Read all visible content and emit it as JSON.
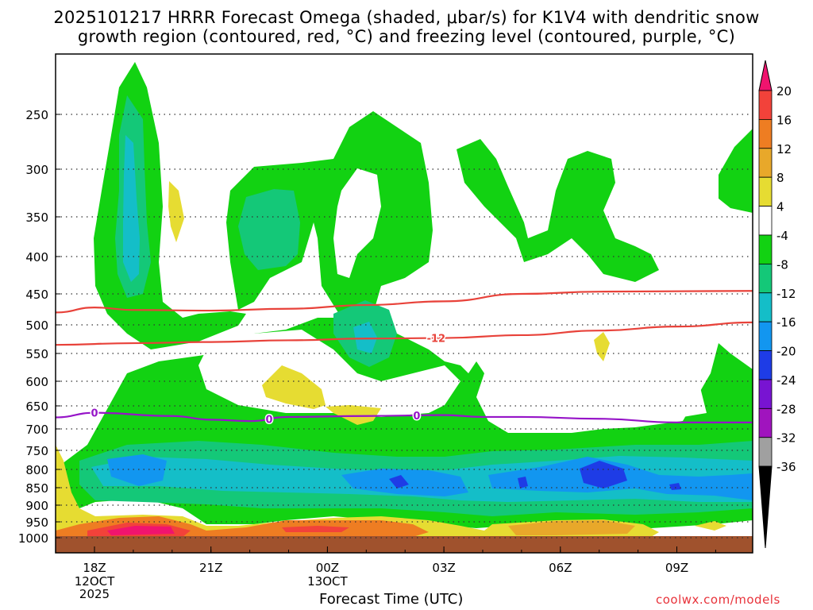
{
  "title_line1": "2025101217 HRRR Forecast Omega (shaded, μbar/s) for K1V4 with dendritic snow",
  "title_line2": "growth region (contoured, red, °C) and freezing level (contoured, purple, °C)",
  "xaxis_title": "Forecast Time (UTC)",
  "credit": "coolwx.com/models",
  "chart_data": {
    "type": "heatmap",
    "x_ticks": [
      {
        "label": "18Z",
        "sub": [
          "12OCT",
          "2025"
        ],
        "hour": 18
      },
      {
        "label": "21Z",
        "sub": [],
        "hour": 21
      },
      {
        "label": "00Z",
        "sub": [
          "13OCT"
        ],
        "hour": 24
      },
      {
        "label": "03Z",
        "sub": [],
        "hour": 27
      },
      {
        "label": "06Z",
        "sub": [],
        "hour": 30
      },
      {
        "label": "09Z",
        "sub": [],
        "hour": 33
      }
    ],
    "x_range_hours": [
      17,
      35
    ],
    "y_ticks": [
      "250",
      "300",
      "350",
      "400",
      "450",
      "500",
      "550",
      "600",
      "650",
      "700",
      "750",
      "800",
      "850",
      "900",
      "950",
      "1000"
    ],
    "y_values": [
      250,
      300,
      350,
      400,
      450,
      500,
      550,
      600,
      650,
      700,
      750,
      800,
      850,
      900,
      950,
      1000
    ],
    "colorbar": {
      "labels": [
        "20",
        "16",
        "12",
        "8",
        "4",
        "-4",
        "-8",
        "-12",
        "-16",
        "-20",
        "-24",
        "-28",
        "-32",
        "-36"
      ],
      "colors": [
        "#f0146e",
        "#f2423a",
        "#ee7d22",
        "#e8a82a",
        "#e6dc32",
        "#ffffff",
        "#12d212",
        "#14c878",
        "#14bec8",
        "#1296f0",
        "#1e3ce6",
        "#7814d2",
        "#a014be",
        "#a0a0a0",
        "#000000"
      ]
    },
    "contours": [
      {
        "name": "-12",
        "color": "#e8423a",
        "points": [
          [
            17,
            535
          ],
          [
            19,
            532
          ],
          [
            21,
            530
          ],
          [
            23,
            527
          ],
          [
            25,
            524
          ],
          [
            27,
            523
          ],
          [
            29,
            518
          ],
          [
            31,
            510
          ],
          [
            33,
            503
          ],
          [
            35,
            496
          ]
        ]
      },
      {
        "name": "",
        "color": "#e8423a",
        "points": [
          [
            17,
            480
          ],
          [
            18,
            472
          ],
          [
            19,
            476
          ],
          [
            21,
            477
          ],
          [
            23,
            474
          ],
          [
            25,
            468
          ],
          [
            27,
            462
          ],
          [
            29,
            450
          ],
          [
            31,
            447
          ],
          [
            35,
            446
          ]
        ]
      },
      {
        "name": "0",
        "color": "#9614c8",
        "points": [
          [
            17,
            675
          ],
          [
            18,
            665
          ],
          [
            20,
            672
          ],
          [
            21,
            680
          ],
          [
            22,
            683
          ],
          [
            23,
            674
          ],
          [
            25,
            672
          ],
          [
            27,
            670
          ],
          [
            28,
            674
          ],
          [
            29,
            674
          ],
          [
            31,
            678
          ],
          [
            33,
            686
          ],
          [
            35,
            686
          ]
        ]
      }
    ]
  }
}
